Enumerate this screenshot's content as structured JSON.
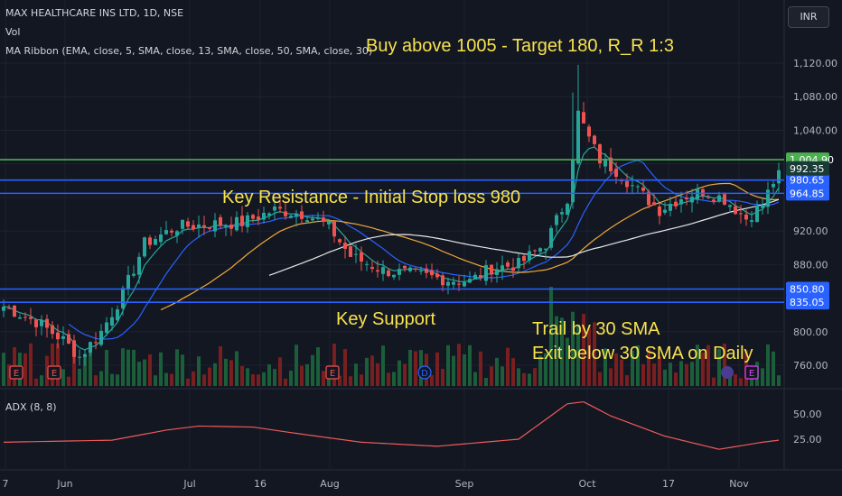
{
  "header": {
    "symbol": "MAX HEALTHCARE INS LTD, 1D, NSE",
    "vol_label": "Vol",
    "ma_ribbon": "MA Ribbon (EMA, close, 5, SMA, close, 13, SMA, close, 50, SMA, close, 30)",
    "currency": "INR"
  },
  "annotations": {
    "title": "Buy above 1005 - Target 180, R_R 1:3",
    "resistance": "Key Resistance - Initial Stop loss 980",
    "support": "Key Support",
    "trail": "Trail by 30 SMA",
    "exit": "Exit below 30 SMA on Daily"
  },
  "adx_label": "ADX (8, 8)",
  "colors": {
    "background": "#131722",
    "bullish": "#26a69a",
    "bearish": "#ef5350",
    "level_green": "#4caf50",
    "level_blue": "#2962ff",
    "annotation_text": "#f7e24d",
    "adx_line": "#f05a5a"
  },
  "chart_data": {
    "type": "candlestick",
    "y_axis": {
      "ticks": [
        "1,120.00",
        "1,080.00",
        "1,040.00",
        "920.00",
        "880.00",
        "840.00",
        "800.00",
        "760.00"
      ],
      "range": [
        745,
        1135
      ]
    },
    "x_axis": {
      "labels": [
        "7",
        "Jun",
        "Jul",
        "16",
        "Aug",
        "Sep",
        "Oct",
        "17",
        "Nov"
      ]
    },
    "horizontal_levels": [
      {
        "label": "1,004.90",
        "value": 1004.9,
        "color": "#4caf50"
      },
      {
        "label": "980.65",
        "value": 980.65,
        "color": "#2962ff"
      },
      {
        "label": "964.85",
        "value": 964.85,
        "color": "#2962ff"
      },
      {
        "label": "850.80",
        "value": 850.8,
        "color": "#2962ff"
      },
      {
        "label": "835.05",
        "value": 835.05,
        "color": "#2962ff"
      }
    ],
    "last_price": {
      "label": "992.35",
      "value": 992.35
    },
    "event_markers": [
      "E",
      "E",
      "E",
      "D",
      "E"
    ],
    "adx": {
      "ticks": [
        "50.00",
        "25.00"
      ],
      "range": [
        0,
        68
      ]
    }
  }
}
